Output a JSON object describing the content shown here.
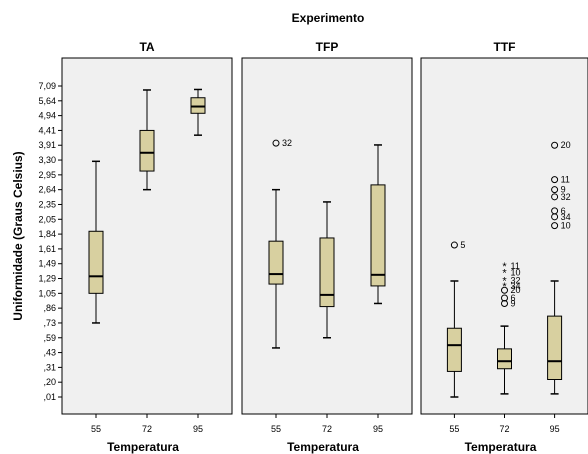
{
  "chart_data": {
    "type": "boxplot",
    "title": "Experimento",
    "ylabel": "Uniformidade (Graus Celsius)",
    "xlabel": "Temperatura",
    "x_categories": [
      "55",
      "72",
      "95"
    ],
    "yticks": [
      "7,09",
      "5,64",
      "4,94",
      "4,41",
      "3,91",
      "3,30",
      "2,95",
      "2,64",
      "2,35",
      "2,05",
      "1,84",
      "1,61",
      "1,49",
      "1,29",
      "1,05",
      ",86",
      ",73",
      ",59",
      ",43",
      ",31",
      ",20",
      ",01"
    ],
    "ytick_values": [
      7.09,
      5.64,
      4.94,
      4.41,
      3.91,
      3.3,
      2.95,
      2.64,
      2.35,
      2.05,
      1.84,
      1.61,
      1.49,
      1.29,
      1.05,
      0.86,
      0.73,
      0.59,
      0.43,
      0.31,
      0.2,
      0.01
    ],
    "scale_note": "ordinal (non-linear) axis; value positions interpolated between tick labels",
    "colors": {
      "box_fill": "#d8d0a0",
      "panel_bg": "#f0f0f0",
      "box_stroke": "#000000"
    },
    "panels": [
      {
        "name": "TA",
        "boxes": [
          {
            "category": "55",
            "min": 0.73,
            "q1": 1.05,
            "median": 1.32,
            "q3": 1.88,
            "max": 3.27,
            "outliers": []
          },
          {
            "category": "72",
            "min": 2.64,
            "q1": 3.04,
            "median": 3.6,
            "q3": 4.41,
            "max": 6.7,
            "outliers": []
          },
          {
            "category": "95",
            "min": 4.25,
            "q1": 5.05,
            "median": 5.37,
            "q3": 5.94,
            "max": 6.75,
            "outliers": []
          }
        ]
      },
      {
        "name": "TFP",
        "boxes": [
          {
            "category": "55",
            "min": 0.48,
            "q1": 1.2,
            "median": 1.35,
            "q3": 1.73,
            "max": 2.64,
            "outliers": [
              {
                "value": 3.98,
                "label": "32",
                "marker": "circle"
              }
            ]
          },
          {
            "category": "72",
            "min": 0.59,
            "q1": 0.88,
            "median": 1.03,
            "q3": 1.78,
            "max": 2.4,
            "outliers": []
          },
          {
            "category": "95",
            "min": 0.92,
            "q1": 1.17,
            "median": 1.34,
            "q3": 2.74,
            "max": 3.92,
            "outliers": []
          }
        ]
      },
      {
        "name": "TTF",
        "boxes": [
          {
            "category": "55",
            "min": 0.01,
            "q1": 0.28,
            "median": 0.51,
            "q3": 0.68,
            "max": 1.25,
            "outliers": [
              {
                "value": 1.67,
                "label": "5",
                "marker": "circle"
              }
            ]
          },
          {
            "category": "72",
            "min": 0.05,
            "q1": 0.3,
            "median": 0.36,
            "q3": 0.47,
            "max": 0.7,
            "outliers": [
              {
                "value": 1.46,
                "label": "11",
                "marker": "star"
              },
              {
                "value": 1.37,
                "label": "10",
                "marker": "star"
              },
              {
                "value": 1.26,
                "label": "32",
                "marker": "star"
              },
              {
                "value": 1.17,
                "label": "34",
                "marker": "star"
              },
              {
                "value": 1.1,
                "label": "20",
                "marker": "circle"
              },
              {
                "value": 0.99,
                "label": "6",
                "marker": "circle"
              },
              {
                "value": 0.92,
                "label": "9",
                "marker": "circle"
              }
            ]
          },
          {
            "category": "95",
            "min": 0.05,
            "q1": 0.22,
            "median": 0.36,
            "q3": 0.79,
            "max": 1.25,
            "outliers": [
              {
                "value": 3.91,
                "label": "20",
                "marker": "circle"
              },
              {
                "value": 2.85,
                "label": "11",
                "marker": "circle"
              },
              {
                "value": 2.64,
                "label": "9",
                "marker": "circle"
              },
              {
                "value": 2.5,
                "label": "32",
                "marker": "circle"
              },
              {
                "value": 2.22,
                "label": "6",
                "marker": "circle"
              },
              {
                "value": 2.1,
                "label": "34",
                "marker": "circle"
              },
              {
                "value": 1.96,
                "label": "10",
                "marker": "circle"
              }
            ]
          }
        ]
      }
    ]
  }
}
